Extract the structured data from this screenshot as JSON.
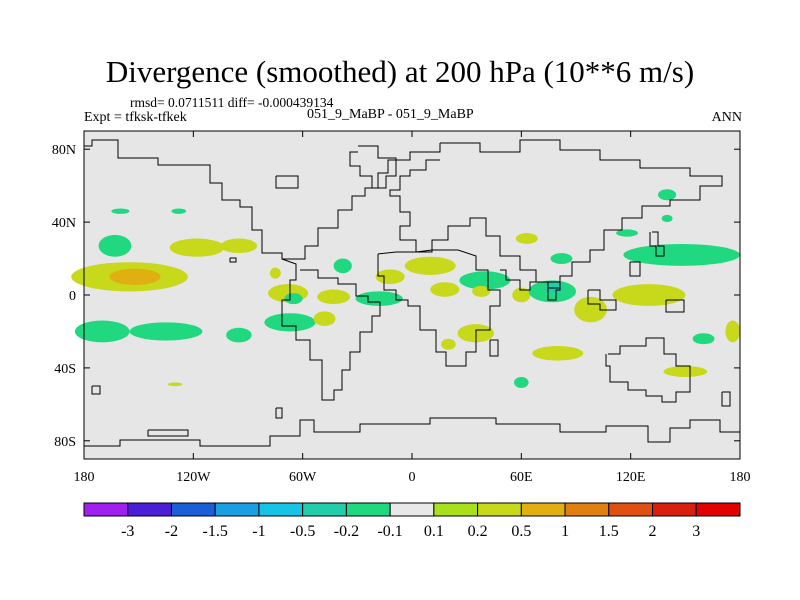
{
  "header": {
    "title": "Divergence (smoothed) at 200 hPa (10**6 m/s)",
    "stats": "rmsd= 0.0711511 diff= -0.000439134",
    "expt": "Expt = tfksk-tfkek",
    "case": "051_9_MaBP - 051_9_MaBP",
    "season": "ANN"
  },
  "chart_data": {
    "type": "heatmap",
    "title": "Divergence (smoothed) at 200 hPa (10**6 m/s)",
    "xlabel": "",
    "ylabel": "",
    "xlim": [
      -180,
      180
    ],
    "ylim": [
      -90,
      90
    ],
    "x_ticks": [
      {
        "value": -180,
        "label": "180"
      },
      {
        "value": -120,
        "label": "120W"
      },
      {
        "value": -60,
        "label": "60W"
      },
      {
        "value": 0,
        "label": "0"
      },
      {
        "value": 60,
        "label": "60E"
      },
      {
        "value": 120,
        "label": "120E"
      },
      {
        "value": 180,
        "label": "180"
      }
    ],
    "y_ticks": [
      {
        "value": 80,
        "label": "80N"
      },
      {
        "value": 40,
        "label": "40N"
      },
      {
        "value": 0,
        "label": "0"
      },
      {
        "value": -40,
        "label": "40S"
      },
      {
        "value": -80,
        "label": "80S"
      }
    ],
    "background_color": "#e6e6e6",
    "colorbar": {
      "labels": [
        "-3",
        "-2",
        "-1.5",
        "-1",
        "-0.5",
        "-0.2",
        "-0.1",
        "0.1",
        "0.2",
        "0.5",
        "1",
        "1.5",
        "2",
        "3"
      ],
      "colors": [
        "#a020f0",
        "#4a1fd6",
        "#1a5fd6",
        "#1aa0e0",
        "#18c4e6",
        "#22ceaa",
        "#20d880",
        "#e8e8e8",
        "#a8e01c",
        "#c8d81a",
        "#e0b010",
        "#e08010",
        "#e05010",
        "#d82010",
        "#e00000"
      ]
    },
    "regions": [
      {
        "lon": -155,
        "lat": 10,
        "rx": 32,
        "ry": 8,
        "level": "0.2"
      },
      {
        "lon": -152,
        "lat": 10,
        "rx": 14,
        "ry": 4.5,
        "level": "0.5"
      },
      {
        "lon": -163,
        "lat": 27,
        "rx": 9,
        "ry": 6,
        "level": "-0.1"
      },
      {
        "lon": -118,
        "lat": 26,
        "rx": 15,
        "ry": 5,
        "level": "0.2"
      },
      {
        "lon": -95,
        "lat": 27,
        "rx": 10,
        "ry": 4,
        "level": "0.2"
      },
      {
        "lon": -170,
        "lat": -20,
        "rx": 15,
        "ry": 6,
        "level": "-0.1"
      },
      {
        "lon": -135,
        "lat": -20,
        "rx": 20,
        "ry": 5,
        "level": "-0.1"
      },
      {
        "lon": -95,
        "lat": -22,
        "rx": 7,
        "ry": 4,
        "level": "-0.1"
      },
      {
        "lon": -68,
        "lat": 1,
        "rx": 11,
        "ry": 5,
        "level": "0.2"
      },
      {
        "lon": -65,
        "lat": -2,
        "rx": 5,
        "ry": 3,
        "level": "-0.1"
      },
      {
        "lon": -43,
        "lat": -1,
        "rx": 9,
        "ry": 4,
        "level": "0.2"
      },
      {
        "lon": -18,
        "lat": -2,
        "rx": 13,
        "ry": 4,
        "level": "-0.1"
      },
      {
        "lon": -67,
        "lat": -15,
        "rx": 14,
        "ry": 5,
        "level": "-0.1"
      },
      {
        "lon": -48,
        "lat": -13,
        "rx": 6,
        "ry": 4,
        "level": "0.2"
      },
      {
        "lon": -75,
        "lat": 12,
        "rx": 3,
        "ry": 3,
        "level": "0.2"
      },
      {
        "lon": -38,
        "lat": 16,
        "rx": 5,
        "ry": 4,
        "level": "-0.1"
      },
      {
        "lon": -12,
        "lat": 10,
        "rx": 8,
        "ry": 4,
        "level": "0.2"
      },
      {
        "lon": 10,
        "lat": 16,
        "rx": 14,
        "ry": 5,
        "level": "0.2"
      },
      {
        "lon": 18,
        "lat": 3,
        "rx": 8,
        "ry": 4,
        "level": "0.2"
      },
      {
        "lon": 40,
        "lat": 8,
        "rx": 14,
        "ry": 5,
        "level": "-0.1"
      },
      {
        "lon": 38,
        "lat": 2,
        "rx": 5,
        "ry": 3,
        "level": "0.2"
      },
      {
        "lon": 60,
        "lat": 0,
        "rx": 5,
        "ry": 4,
        "level": "0.2"
      },
      {
        "lon": 77,
        "lat": 2,
        "rx": 13,
        "ry": 6,
        "level": "-0.1"
      },
      {
        "lon": 78,
        "lat": 4,
        "rx": 5,
        "ry": 3,
        "level": "-0.2"
      },
      {
        "lon": 98,
        "lat": -8,
        "rx": 9,
        "ry": 7,
        "level": "0.2"
      },
      {
        "lon": 130,
        "lat": 0,
        "rx": 20,
        "ry": 6,
        "level": "0.2"
      },
      {
        "lon": 148,
        "lat": 22,
        "rx": 32,
        "ry": 6,
        "level": "-0.1"
      },
      {
        "lon": 140,
        "lat": 55,
        "rx": 5,
        "ry": 3,
        "level": "-0.1"
      },
      {
        "lon": 118,
        "lat": 34,
        "rx": 6,
        "ry": 2,
        "level": "-0.1"
      },
      {
        "lon": 140,
        "lat": 42,
        "rx": 3,
        "ry": 2,
        "level": "-0.1"
      },
      {
        "lon": 63,
        "lat": 31,
        "rx": 6,
        "ry": 3,
        "level": "0.2"
      },
      {
        "lon": 82,
        "lat": 20,
        "rx": 6,
        "ry": 3,
        "level": "-0.1"
      },
      {
        "lon": 35,
        "lat": -21,
        "rx": 10,
        "ry": 5,
        "level": "0.2"
      },
      {
        "lon": 80,
        "lat": -32,
        "rx": 14,
        "ry": 4,
        "level": "0.2"
      },
      {
        "lon": 150,
        "lat": -42,
        "rx": 12,
        "ry": 3,
        "level": "0.2"
      },
      {
        "lon": 176,
        "lat": -20,
        "rx": 4,
        "ry": 6,
        "level": "0.2"
      },
      {
        "lon": 160,
        "lat": -24,
        "rx": 6,
        "ry": 3,
        "level": "-0.1"
      },
      {
        "lon": 60,
        "lat": -48,
        "rx": 4,
        "ry": 3,
        "level": "-0.1"
      },
      {
        "lon": 20,
        "lat": -27,
        "rx": 4,
        "ry": 3,
        "level": "0.2"
      },
      {
        "lon": -160,
        "lat": 46,
        "rx": 5,
        "ry": 1.5,
        "level": "-0.1"
      },
      {
        "lon": -128,
        "lat": 46,
        "rx": 4,
        "ry": 1.5,
        "level": "-0.1"
      },
      {
        "lon": -130,
        "lat": -49,
        "rx": 4,
        "ry": 1,
        "level": "0.2"
      }
    ]
  }
}
